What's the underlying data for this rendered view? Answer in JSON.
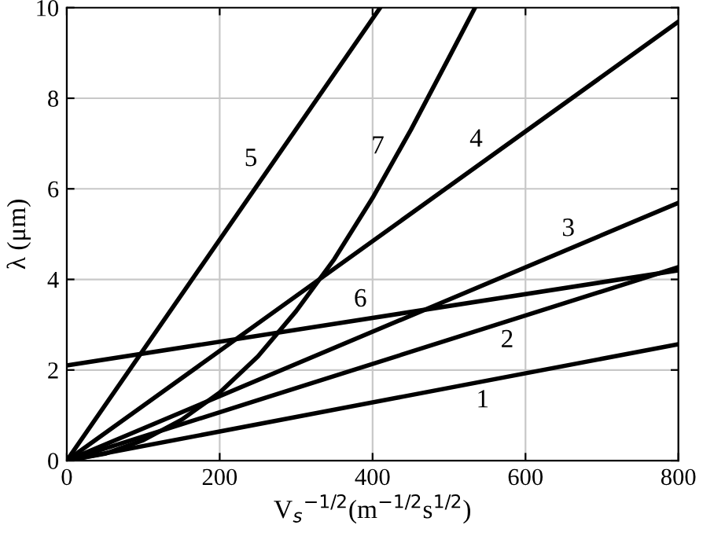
{
  "chart_data": {
    "type": "line",
    "xlabel": "V$_{s}$$^{−1/2}$(m$^{−1/2}$s$^{1/2}$)",
    "ylabel": "λ (μm)",
    "xlim": [
      0,
      800
    ],
    "ylim": [
      0,
      10
    ],
    "xticks": [
      0,
      200,
      400,
      600,
      800
    ],
    "yticks": [
      0,
      2,
      4,
      6,
      8,
      10
    ],
    "grid": true,
    "legend": false,
    "marker": "none",
    "line_style": "solid",
    "series": [
      {
        "name": "1",
        "color": "#000000",
        "x": [
          0,
          800
        ],
        "values": [
          0,
          2.57
        ]
      },
      {
        "name": "2",
        "color": "#000000",
        "x": [
          0,
          800
        ],
        "values": [
          0,
          4.27
        ]
      },
      {
        "name": "3",
        "color": "#000000",
        "x": [
          0,
          800
        ],
        "values": [
          0,
          5.69
        ]
      },
      {
        "name": "4",
        "color": "#000000",
        "x": [
          0,
          800
        ],
        "values": [
          0,
          9.69
        ]
      },
      {
        "name": "5",
        "color": "#000000",
        "x": [
          0,
          410
        ],
        "values": [
          0,
          10
        ]
      },
      {
        "name": "6",
        "color": "#000000",
        "x": [
          0,
          800
        ],
        "values": [
          2.1,
          4.2
        ]
      },
      {
        "name": "7",
        "color": "#000000",
        "x": [
          0,
          50,
          100,
          150,
          200,
          250,
          300,
          350,
          400,
          450,
          500,
          534
        ],
        "values": [
          0,
          0.15,
          0.45,
          0.9,
          1.5,
          2.3,
          3.3,
          4.45,
          5.8,
          7.3,
          8.9,
          10
        ]
      }
    ]
  }
}
